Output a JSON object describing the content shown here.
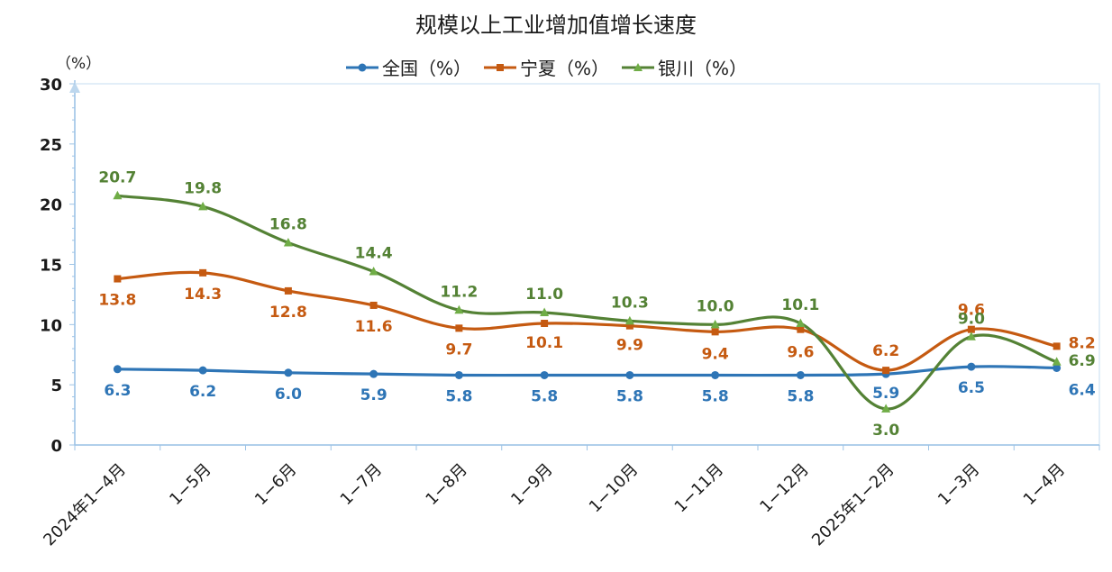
{
  "chart_data": {
    "type": "line",
    "title": "规模以上工业增加值增长速度",
    "ylabel": "（%）",
    "ylim": [
      0,
      30
    ],
    "yticks": [
      "0",
      "5",
      "10",
      "15",
      "20",
      "25",
      "30"
    ],
    "categories": [
      "2024年1−4月",
      "1−5月",
      "1−6月",
      "1−7月",
      "1−8月",
      "1−9月",
      "1−10月",
      "1−11月",
      "1−12月",
      "2025年1−2月",
      "1−3月",
      "1−4月"
    ],
    "grid": false,
    "legend_position": "top-center",
    "series": [
      {
        "name": "全国（%）",
        "color": "#2E75B6",
        "marker": "circle",
        "values": [
          6.3,
          6.2,
          6.0,
          5.9,
          5.8,
          5.8,
          5.8,
          5.8,
          5.8,
          5.9,
          6.5,
          6.4
        ],
        "labels": [
          "6.3",
          "6.2",
          "6.0",
          "5.9",
          "5.8",
          "5.8",
          "5.8",
          "5.8",
          "5.8",
          "5.9",
          "6.5",
          "6.4"
        ]
      },
      {
        "name": "宁夏（%）",
        "color": "#C55A11",
        "marker": "square",
        "values": [
          13.8,
          14.3,
          12.8,
          11.6,
          9.7,
          10.1,
          9.9,
          9.4,
          9.6,
          6.2,
          9.6,
          8.2
        ],
        "labels": [
          "13.8",
          "14.3",
          "12.8",
          "11.6",
          "9.7",
          "10.1",
          "9.9",
          "9.4",
          "9.6",
          "6.2",
          "9.6",
          "8.2"
        ]
      },
      {
        "name": "银川（%）",
        "color": "#548235",
        "marker": "triangle",
        "values": [
          20.7,
          19.8,
          16.8,
          14.4,
          11.2,
          11.0,
          10.3,
          10.0,
          10.1,
          3.0,
          9.0,
          6.9
        ],
        "labels": [
          "20.7",
          "19.8",
          "16.8",
          "14.4",
          "11.2",
          "11.0",
          "10.3",
          "10.0",
          "10.1",
          "3.0",
          "9.0",
          "6.9"
        ]
      }
    ]
  }
}
